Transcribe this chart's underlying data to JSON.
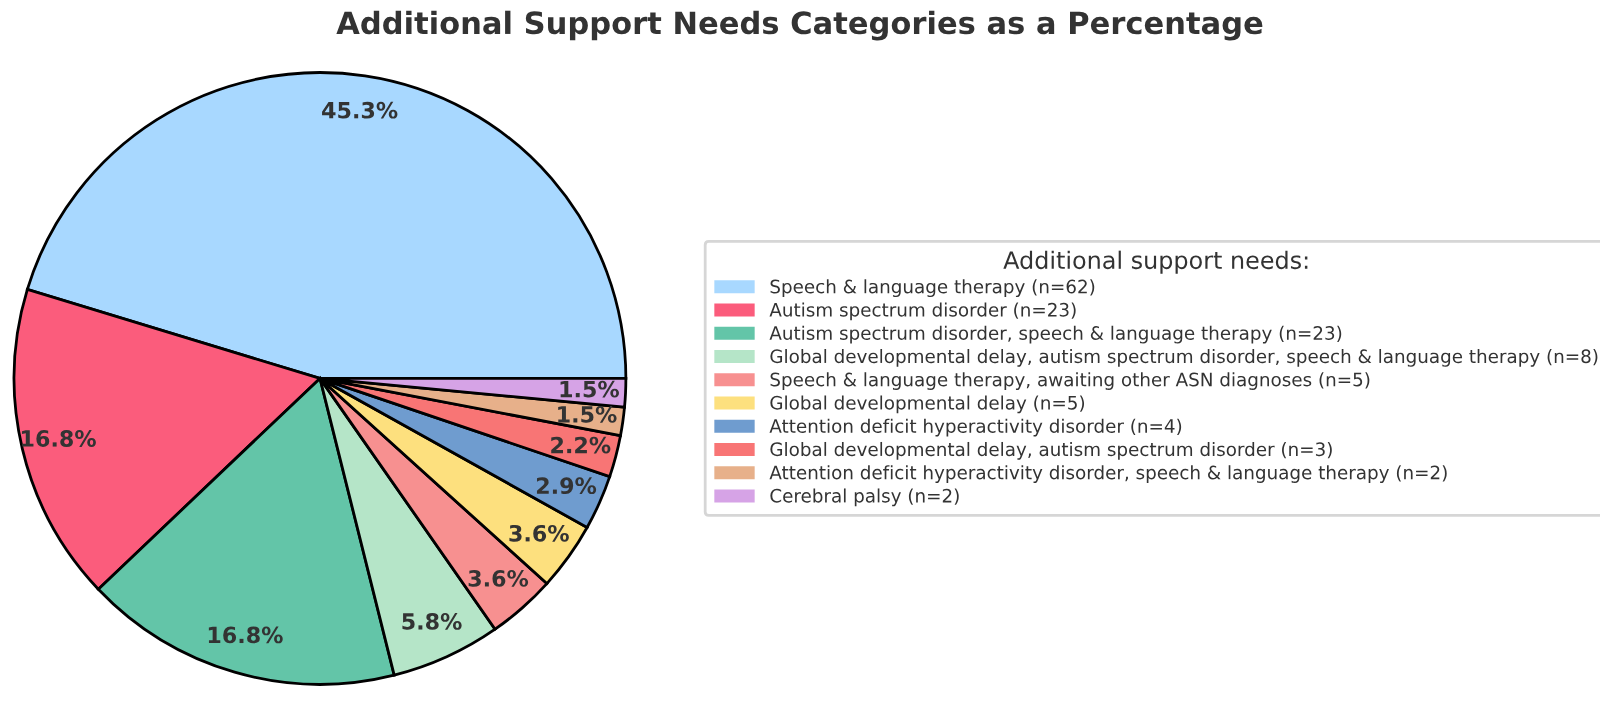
{
  "chart_data": {
    "type": "pie",
    "title": "Additional Support Needs Categories as a Percentage",
    "legend_title": "Additional support needs:",
    "legend": "right",
    "categories": [
      "Speech & language therapy (n=62)",
      "Autism spectrum disorder (n=23)",
      "Autism spectrum disorder, speech & language therapy (n=23)",
      "Global developmental delay, autism spectrum disorder, speech & language therapy (n=8)",
      "Speech & language therapy, awaiting other ASN diagnoses (n=5)",
      "Global developmental delay (n=5)",
      "Attention deficit hyperactivity disorder (n=4)",
      "Global developmental delay, autism spectrum disorder (n=3)",
      "Attention deficit hyperactivity disorder, speech & language therapy (n=2)",
      "Cerebral palsy (n=2)"
    ],
    "values": [
      45.3,
      16.8,
      16.8,
      5.8,
      3.6,
      3.6,
      2.9,
      2.2,
      1.5,
      1.5
    ],
    "value_labels": [
      "45.3%",
      "16.8%",
      "16.8%",
      "5.8%",
      "3.6%",
      "3.6%",
      "2.9%",
      "2.2%",
      "1.5%",
      "1.5%"
    ],
    "colors": [
      "#a8d8ff",
      "#fb5c7c",
      "#63c5a8",
      "#b5e5c8",
      "#f79090",
      "#fde07e",
      "#6f9ccf",
      "#f87575",
      "#e7b08a",
      "#d6a3e6"
    ]
  }
}
